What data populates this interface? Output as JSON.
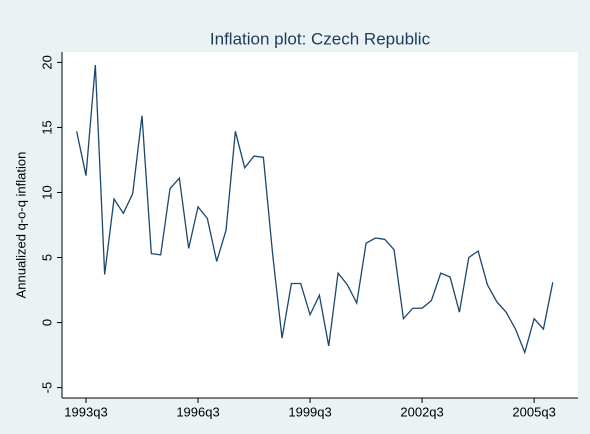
{
  "chart_data": {
    "type": "line",
    "title": "Inflation plot: Czech Republic",
    "y_label": "Annualized q-o-q inflation",
    "x": [
      "1993q2",
      "1993q3",
      "1993q4",
      "1994q1",
      "1994q2",
      "1994q3",
      "1994q4",
      "1995q1",
      "1995q2",
      "1995q3",
      "1995q4",
      "1996q1",
      "1996q2",
      "1996q3",
      "1996q4",
      "1997q1",
      "1997q2",
      "1997q3",
      "1997q4",
      "1998q1",
      "1998q2",
      "1998q3",
      "1998q4",
      "1999q1",
      "1999q2",
      "1999q3",
      "1999q4",
      "2000q1",
      "2000q2",
      "2000q3",
      "2000q4",
      "2001q1",
      "2001q2",
      "2001q3",
      "2001q4",
      "2002q1",
      "2002q2",
      "2002q3",
      "2002q4",
      "2003q1",
      "2003q2",
      "2003q3",
      "2003q4",
      "2004q1",
      "2004q2",
      "2004q3",
      "2004q4",
      "2005q1",
      "2005q2",
      "2005q3",
      "2005q4",
      "2006q1"
    ],
    "series": [
      {
        "name": "Annualized q-o-q inflation",
        "color": "#1a476f",
        "values": [
          14.7,
          11.3,
          19.8,
          3.7,
          9.5,
          8.4,
          9.9,
          15.9,
          5.3,
          5.2,
          10.3,
          11.1,
          5.7,
          8.9,
          8.0,
          4.7,
          7.1,
          14.7,
          11.9,
          12.8,
          12.7,
          5.2,
          -1.2,
          3.0,
          3.0,
          0.6,
          2.1,
          -1.8,
          3.8,
          2.9,
          1.5,
          6.1,
          6.5,
          6.4,
          5.6,
          0.3,
          1.1,
          1.1,
          1.7,
          3.8,
          3.5,
          0.8,
          5.0,
          5.5,
          2.9,
          1.6,
          0.8,
          -0.5,
          -2.3,
          0.3,
          -0.5,
          3.1
        ]
      }
    ],
    "ylim": [
      -5.8,
      20.8
    ],
    "yticks": [
      -5,
      0,
      5,
      10,
      15,
      20
    ],
    "xticks": [
      "1993q3",
      "1996q3",
      "1999q3",
      "2002q3",
      "2005q3"
    ]
  }
}
